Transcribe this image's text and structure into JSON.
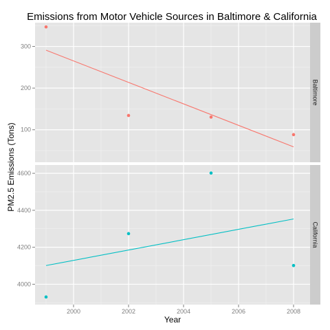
{
  "chart_data": {
    "type": "scatter",
    "title": "Emissions from Motor Vehicle Sources in Baltimore & California",
    "xlabel": "Year",
    "ylabel": "PM2.5 Emissions (Tons)",
    "x_ticks": [
      2000,
      2002,
      2004,
      2006,
      2008
    ],
    "xlim": [
      1998.6,
      2008.6
    ],
    "panels": [
      {
        "name": "Baltimore",
        "color": "#F8766D",
        "ylim": [
          22,
          357
        ],
        "y_ticks": [
          100,
          200,
          300
        ],
        "points": [
          {
            "x": 1999,
            "y": 346.8
          },
          {
            "x": 2002,
            "y": 134.3
          },
          {
            "x": 2005,
            "y": 130.4
          },
          {
            "x": 2008,
            "y": 88.3
          }
        ],
        "trend": {
          "x": [
            1999,
            2008
          ],
          "y": [
            291,
            59
          ]
        }
      },
      {
        "name": "California",
        "color": "#00BFC4",
        "ylim": [
          3890,
          4645
        ],
        "y_ticks": [
          4000,
          4200,
          4400,
          4600
        ],
        "points": [
          {
            "x": 1999,
            "y": 3931.1
          },
          {
            "x": 2002,
            "y": 4273.7
          },
          {
            "x": 2005,
            "y": 4601.4
          },
          {
            "x": 2008,
            "y": 4101.3
          }
        ],
        "trend": {
          "x": [
            1999,
            2008
          ],
          "y": [
            4101,
            4353
          ]
        }
      }
    ],
    "grid": true,
    "legend": "none"
  }
}
